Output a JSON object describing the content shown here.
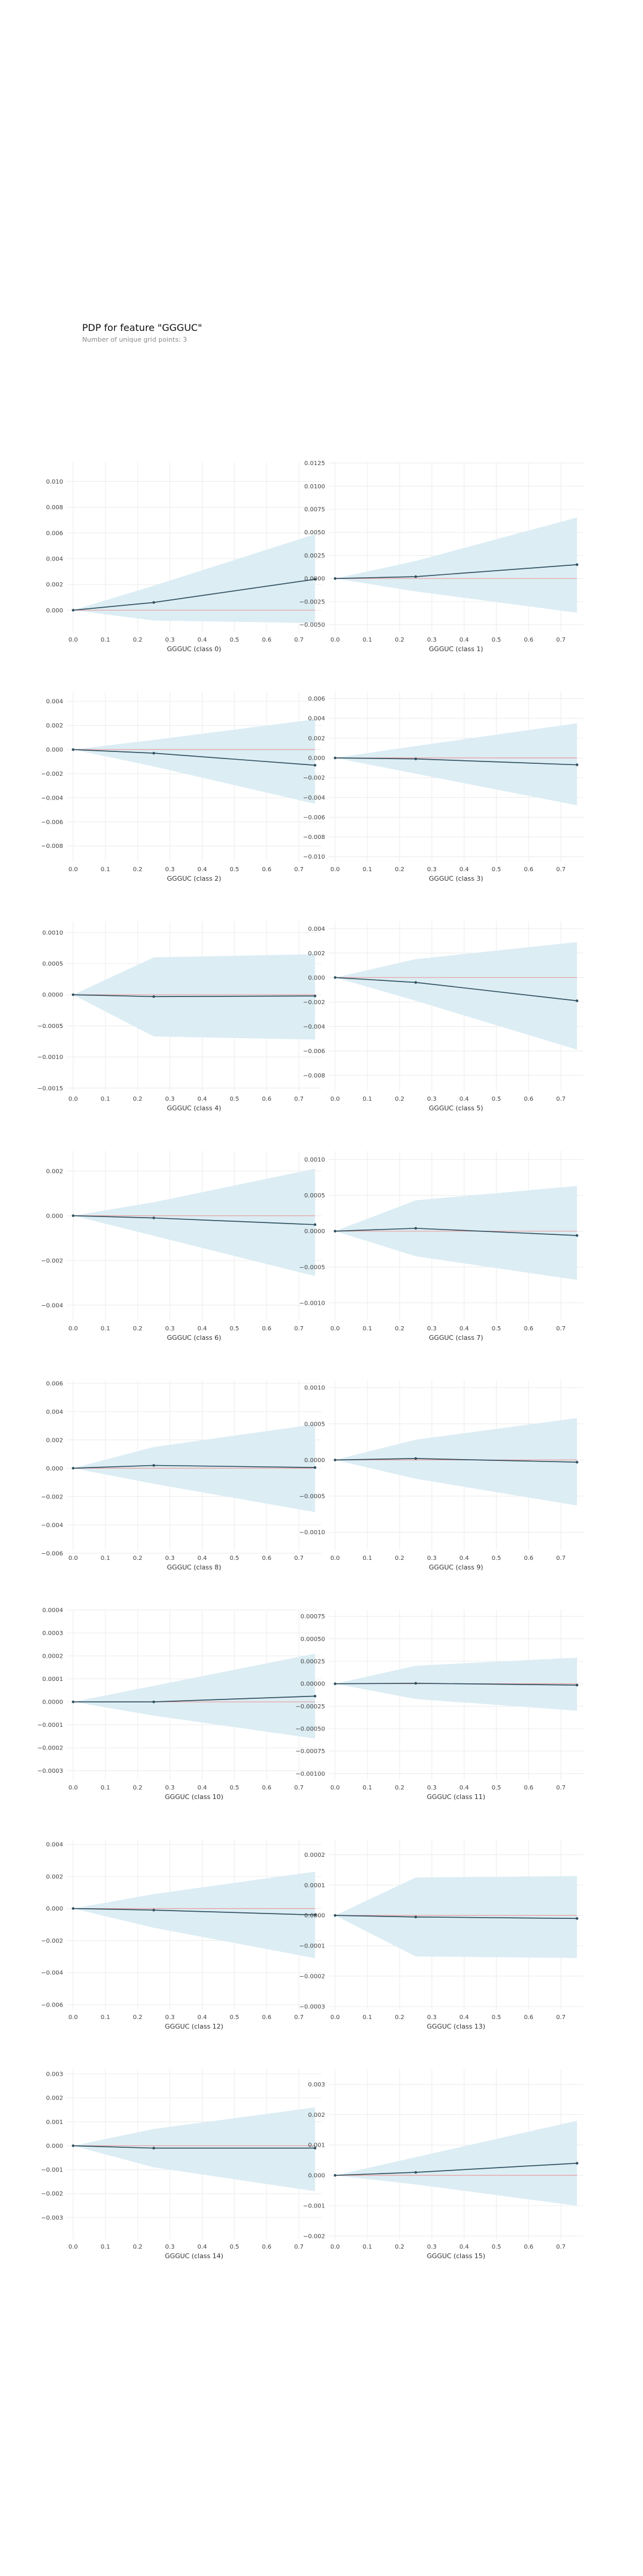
{
  "figure": {
    "title": "PDP for feature \"GGGUC\"",
    "subtitle": "Number of unique grid points: 3"
  },
  "colors": {
    "band": "#dcedf4",
    "line": "#2f4f5f",
    "reference": "#e8a0a0",
    "grid": "#ececec",
    "tick_text": "#444444"
  },
  "chart_data": [
    {
      "type": "line",
      "xlabel": "GGGUC (class 0)",
      "x": [
        0,
        0.25,
        0.75
      ],
      "y": [
        0,
        0.0006,
        0.0024
      ],
      "band_upper": [
        0,
        0.0019,
        0.0059
      ],
      "band_lower": [
        0,
        -0.0008,
        -0.001
      ],
      "ylim": [
        -0.0017,
        0.0115
      ],
      "yticks": [
        0,
        0.002,
        0.004,
        0.006,
        0.008,
        0.01
      ],
      "ytick_labels": [
        "0.000",
        "0.002",
        "0.004",
        "0.006",
        "0.008",
        "0.010"
      ],
      "xticks": [
        0,
        0.1,
        0.2,
        0.3,
        0.4,
        0.5,
        0.6,
        0.7
      ],
      "xtick_labels": [
        "0.0",
        "0.1",
        "0.2",
        "0.3",
        "0.4",
        "0.5",
        "0.6",
        "0.7"
      ],
      "grid": true
    },
    {
      "type": "line",
      "xlabel": "GGGUC (class 1)",
      "x": [
        0,
        0.25,
        0.75
      ],
      "y": [
        0,
        0.0002,
        0.0015
      ],
      "band_upper": [
        0,
        0.0019,
        0.0066
      ],
      "band_lower": [
        0,
        -0.0014,
        -0.0037
      ],
      "ylim": [
        -0.0058,
        0.0126
      ],
      "yticks": [
        -0.005,
        -0.0025,
        0,
        0.0025,
        0.005,
        0.0075,
        0.01,
        0.0125
      ],
      "ytick_labels": [
        "−0.0050",
        "−0.0025",
        "0.0000",
        "0.0025",
        "0.0050",
        "0.0075",
        "0.0100",
        "0.0125"
      ],
      "xticks": [
        0,
        0.1,
        0.2,
        0.3,
        0.4,
        0.5,
        0.6,
        0.7
      ],
      "xtick_labels": [
        "0.0",
        "0.1",
        "0.2",
        "0.3",
        "0.4",
        "0.5",
        "0.6",
        "0.7"
      ],
      "grid": true
    },
    {
      "type": "line",
      "xlabel": "GGGUC (class 2)",
      "x": [
        0,
        0.25,
        0.75
      ],
      "y": [
        0,
        -0.0003,
        -0.0013
      ],
      "band_upper": [
        0,
        0.0008,
        0.0025
      ],
      "band_lower": [
        0,
        -0.0014,
        -0.0045
      ],
      "ylim": [
        -0.0093,
        0.0048
      ],
      "yticks": [
        -0.008,
        -0.006,
        -0.004,
        -0.002,
        0,
        0.002,
        0.004
      ],
      "ytick_labels": [
        "−0.008",
        "−0.006",
        "−0.004",
        "−0.002",
        "0.000",
        "0.002",
        "0.004"
      ],
      "xticks": [
        0,
        0.1,
        0.2,
        0.3,
        0.4,
        0.5,
        0.6,
        0.7
      ],
      "xtick_labels": [
        "0.0",
        "0.1",
        "0.2",
        "0.3",
        "0.4",
        "0.5",
        "0.6",
        "0.7"
      ],
      "grid": true
    },
    {
      "type": "line",
      "xlabel": "GGGUC (class 3)",
      "x": [
        0,
        0.25,
        0.75
      ],
      "y": [
        0,
        -0.0001,
        -0.0007
      ],
      "band_upper": [
        0,
        0.0012,
        0.0035
      ],
      "band_lower": [
        0,
        -0.0016,
        -0.0048
      ],
      "ylim": [
        -0.0105,
        0.0067
      ],
      "yticks": [
        -0.01,
        -0.008,
        -0.006,
        -0.004,
        -0.002,
        0,
        0.002,
        0.004,
        0.006
      ],
      "ytick_labels": [
        "−0.010",
        "−0.008",
        "−0.006",
        "−0.004",
        "−0.002",
        "0.000",
        "0.002",
        "0.004",
        "0.006"
      ],
      "xticks": [
        0,
        0.1,
        0.2,
        0.3,
        0.4,
        0.5,
        0.6,
        0.7
      ],
      "xtick_labels": [
        "0.0",
        "0.1",
        "0.2",
        "0.3",
        "0.4",
        "0.5",
        "0.6",
        "0.7"
      ],
      "grid": true
    },
    {
      "type": "line",
      "xlabel": "GGGUC (class 4)",
      "x": [
        0,
        0.25,
        0.75
      ],
      "y": [
        0,
        -3e-05,
        -2e-05
      ],
      "band_upper": [
        0,
        0.0006,
        0.00065
      ],
      "band_lower": [
        0,
        -0.00067,
        -0.00072
      ],
      "ylim": [
        -0.00155,
        0.00118
      ],
      "yticks": [
        -0.0015,
        -0.001,
        -0.0005,
        0,
        0.0005,
        0.001
      ],
      "ytick_labels": [
        "−0.0015",
        "−0.0010",
        "−0.0005",
        "0.0000",
        "0.0005",
        "0.0010"
      ],
      "xticks": [
        0,
        0.1,
        0.2,
        0.3,
        0.4,
        0.5,
        0.6,
        0.7
      ],
      "xtick_labels": [
        "0.0",
        "0.1",
        "0.2",
        "0.3",
        "0.4",
        "0.5",
        "0.6",
        "0.7"
      ],
      "grid": true
    },
    {
      "type": "line",
      "xlabel": "GGGUC (class 5)",
      "x": [
        0,
        0.25,
        0.75
      ],
      "y": [
        0,
        -0.0004,
        -0.0019
      ],
      "band_upper": [
        0,
        0.0015,
        0.0029
      ],
      "band_lower": [
        0,
        -0.0019,
        -0.0059
      ],
      "ylim": [
        -0.0093,
        0.0046
      ],
      "yticks": [
        -0.008,
        -0.006,
        -0.004,
        -0.002,
        0,
        0.002,
        0.004
      ],
      "ytick_labels": [
        "−0.008",
        "−0.006",
        "−0.004",
        "−0.002",
        "0.000",
        "0.002",
        "0.004"
      ],
      "xticks": [
        0,
        0.1,
        0.2,
        0.3,
        0.4,
        0.5,
        0.6,
        0.7
      ],
      "xtick_labels": [
        "0.0",
        "0.1",
        "0.2",
        "0.3",
        "0.4",
        "0.5",
        "0.6",
        "0.7"
      ],
      "grid": true
    },
    {
      "type": "line",
      "xlabel": "GGGUC (class 6)",
      "x": [
        0,
        0.25,
        0.75
      ],
      "y": [
        0,
        -0.0001,
        -0.0004
      ],
      "band_upper": [
        0,
        0.0006,
        0.0021
      ],
      "band_lower": [
        0,
        -0.0009,
        -0.0027
      ],
      "ylim": [
        -0.0047,
        0.0029
      ],
      "yticks": [
        -0.004,
        -0.002,
        0,
        0.002
      ],
      "ytick_labels": [
        "−0.004",
        "−0.002",
        "0.000",
        "0.002"
      ],
      "xticks": [
        0,
        0.1,
        0.2,
        0.3,
        0.4,
        0.5,
        0.6,
        0.7
      ],
      "xtick_labels": [
        "0.0",
        "0.1",
        "0.2",
        "0.3",
        "0.4",
        "0.5",
        "0.6",
        "0.7"
      ],
      "grid": true
    },
    {
      "type": "line",
      "xlabel": "GGGUC (class 7)",
      "x": [
        0,
        0.25,
        0.75
      ],
      "y": [
        0,
        4e-05,
        -6e-05
      ],
      "band_upper": [
        0,
        0.00043,
        0.00063
      ],
      "band_lower": [
        0,
        -0.00035,
        -0.00068
      ],
      "ylim": [
        -0.00125,
        0.00112
      ],
      "yticks": [
        -0.001,
        -0.0005,
        0,
        0.0005,
        0.001
      ],
      "ytick_labels": [
        "−0.0010",
        "−0.0005",
        "0.0000",
        "0.0005",
        "0.0010"
      ],
      "xticks": [
        0,
        0.1,
        0.2,
        0.3,
        0.4,
        0.5,
        0.6,
        0.7
      ],
      "xtick_labels": [
        "0.0",
        "0.1",
        "0.2",
        "0.3",
        "0.4",
        "0.5",
        "0.6",
        "0.7"
      ],
      "grid": true
    },
    {
      "type": "line",
      "xlabel": "GGGUC (class 8)",
      "x": [
        0,
        0.25,
        0.75
      ],
      "y": [
        0,
        0.0002,
        5e-05
      ],
      "band_upper": [
        0,
        0.0015,
        0.0031
      ],
      "band_lower": [
        0,
        -0.0011,
        -0.0031
      ],
      "ylim": [
        -0.0058,
        0.0062
      ],
      "yticks": [
        -0.006,
        -0.004,
        -0.002,
        0,
        0.002,
        0.004,
        0.006
      ],
      "ytick_labels": [
        "−0.006",
        "−0.004",
        "−0.002",
        "0.000",
        "0.002",
        "0.004",
        "0.006"
      ],
      "xticks": [
        0,
        0.1,
        0.2,
        0.3,
        0.4,
        0.5,
        0.6,
        0.7
      ],
      "xtick_labels": [
        "0.0",
        "0.1",
        "0.2",
        "0.3",
        "0.4",
        "0.5",
        "0.6",
        "0.7"
      ],
      "grid": true
    },
    {
      "type": "line",
      "xlabel": "GGGUC (class 9)",
      "x": [
        0,
        0.25,
        0.75
      ],
      "y": [
        0,
        2e-05,
        -3e-05
      ],
      "band_upper": [
        0,
        0.00028,
        0.00058
      ],
      "band_lower": [
        0,
        -0.00026,
        -0.00063
      ],
      "ylim": [
        -0.00125,
        0.0011
      ],
      "yticks": [
        -0.001,
        -0.0005,
        0,
        0.0005,
        0.001
      ],
      "ytick_labels": [
        "−0.0010",
        "−0.0005",
        "0.0000",
        "0.0005",
        "0.0010"
      ],
      "xticks": [
        0,
        0.1,
        0.2,
        0.3,
        0.4,
        0.5,
        0.6,
        0.7
      ],
      "xtick_labels": [
        "0.0",
        "0.1",
        "0.2",
        "0.3",
        "0.4",
        "0.5",
        "0.6",
        "0.7"
      ],
      "grid": true
    },
    {
      "type": "line",
      "xlabel": "GGGUC (class 10)",
      "x": [
        0,
        0.25,
        0.75
      ],
      "y": [
        0,
        0,
        2.5e-05
      ],
      "band_upper": [
        0,
        7e-05,
        0.00021
      ],
      "band_lower": [
        0,
        -6e-05,
        -0.00016
      ],
      "ylim": [
        -0.00034,
        0.0004
      ],
      "yticks": [
        -0.0003,
        -0.0002,
        -0.0001,
        0,
        0.0001,
        0.0002,
        0.0003,
        0.0004
      ],
      "ytick_labels": [
        "−0.0003",
        "−0.0002",
        "−0.0001",
        "0.0000",
        "0.0001",
        "0.0002",
        "0.0003",
        "0.0004"
      ],
      "xticks": [
        0,
        0.1,
        0.2,
        0.3,
        0.4,
        0.5,
        0.6,
        0.7
      ],
      "xtick_labels": [
        "0.0",
        "0.1",
        "0.2",
        "0.3",
        "0.4",
        "0.5",
        "0.6",
        "0.7"
      ],
      "grid": true
    },
    {
      "type": "line",
      "xlabel": "GGGUC (class 11)",
      "x": [
        0,
        0.25,
        0.75
      ],
      "y": [
        0,
        5e-06,
        -1.5e-05
      ],
      "band_upper": [
        0,
        0.0002,
        0.00029
      ],
      "band_lower": [
        0,
        -0.00017,
        -0.0003
      ],
      "ylim": [
        -0.00107,
        0.00082
      ],
      "yticks": [
        -0.001,
        -0.00075,
        -0.0005,
        -0.00025,
        0,
        0.00025,
        0.0005,
        0.00075
      ],
      "ytick_labels": [
        "−0.00100",
        "−0.00075",
        "−0.00050",
        "−0.00025",
        "0.00000",
        "0.00025",
        "0.00050",
        "0.00075"
      ],
      "xticks": [
        0,
        0.1,
        0.2,
        0.3,
        0.4,
        0.5,
        0.6,
        0.7
      ],
      "xtick_labels": [
        "0.0",
        "0.1",
        "0.2",
        "0.3",
        "0.4",
        "0.5",
        "0.6",
        "0.7"
      ],
      "grid": true
    },
    {
      "type": "line",
      "xlabel": "GGGUC (class 12)",
      "x": [
        0,
        0.25,
        0.75
      ],
      "y": [
        0,
        -0.0001,
        -0.0004
      ],
      "band_upper": [
        0,
        0.0009,
        0.0023
      ],
      "band_lower": [
        0,
        -0.0012,
        -0.0031
      ],
      "ylim": [
        -0.0063,
        0.0043
      ],
      "yticks": [
        -0.006,
        -0.004,
        -0.002,
        0,
        0.002,
        0.004
      ],
      "ytick_labels": [
        "−0.006",
        "−0.004",
        "−0.002",
        "0.000",
        "0.002",
        "0.004"
      ],
      "xticks": [
        0,
        0.1,
        0.2,
        0.3,
        0.4,
        0.5,
        0.6,
        0.7
      ],
      "xtick_labels": [
        "0.0",
        "0.1",
        "0.2",
        "0.3",
        "0.4",
        "0.5",
        "0.6",
        "0.7"
      ],
      "grid": true
    },
    {
      "type": "line",
      "xlabel": "GGGUC (class 13)",
      "x": [
        0,
        0.25,
        0.75
      ],
      "y": [
        0,
        -5e-06,
        -1e-05
      ],
      "band_upper": [
        0,
        0.000125,
        0.00013
      ],
      "band_lower": [
        0,
        -0.000135,
        -0.00014
      ],
      "ylim": [
        -0.00031,
        0.00025
      ],
      "yticks": [
        -0.0003,
        -0.0002,
        -0.0001,
        0,
        0.0001,
        0.0002
      ],
      "ytick_labels": [
        "−0.0003",
        "−0.0002",
        "−0.0001",
        "0.0000",
        "0.0001",
        "0.0002"
      ],
      "xticks": [
        0,
        0.1,
        0.2,
        0.3,
        0.4,
        0.5,
        0.6,
        0.7
      ],
      "xtick_labels": [
        "0.0",
        "0.1",
        "0.2",
        "0.3",
        "0.4",
        "0.5",
        "0.6",
        "0.7"
      ],
      "grid": true
    },
    {
      "type": "line",
      "xlabel": "GGGUC (class 14)",
      "x": [
        0,
        0.25,
        0.75
      ],
      "y": [
        0,
        -0.0001,
        -0.0001
      ],
      "band_upper": [
        0,
        0.0007,
        0.0016
      ],
      "band_lower": [
        0,
        -0.0009,
        -0.0019
      ],
      "ylim": [
        -0.0039,
        0.0032
      ],
      "yticks": [
        -0.003,
        -0.002,
        -0.001,
        0,
        0.001,
        0.002,
        0.003
      ],
      "ytick_labels": [
        "−0.003",
        "−0.002",
        "−0.001",
        "0.000",
        "0.001",
        "0.002",
        "0.003"
      ],
      "xticks": [
        0,
        0.1,
        0.2,
        0.3,
        0.4,
        0.5,
        0.6,
        0.7
      ],
      "xtick_labels": [
        "0.0",
        "0.1",
        "0.2",
        "0.3",
        "0.4",
        "0.5",
        "0.6",
        "0.7"
      ],
      "grid": true
    },
    {
      "type": "line",
      "xlabel": "GGGUC (class 15)",
      "x": [
        0,
        0.25,
        0.75
      ],
      "y": [
        0,
        0.0001,
        0.0004
      ],
      "band_upper": [
        0,
        0.0006,
        0.0018
      ],
      "band_lower": [
        0,
        -0.0003,
        -0.001
      ],
      "ylim": [
        -0.0021,
        0.0035
      ],
      "yticks": [
        -0.002,
        -0.001,
        0,
        0.001,
        0.002,
        0.003
      ],
      "ytick_labels": [
        "−0.002",
        "−0.001",
        "0.000",
        "0.001",
        "0.002",
        "0.003"
      ],
      "xticks": [
        0,
        0.1,
        0.2,
        0.3,
        0.4,
        0.5,
        0.6,
        0.7
      ],
      "xtick_labels": [
        "0.0",
        "0.1",
        "0.2",
        "0.3",
        "0.4",
        "0.5",
        "0.6",
        "0.7"
      ],
      "grid": true
    }
  ]
}
